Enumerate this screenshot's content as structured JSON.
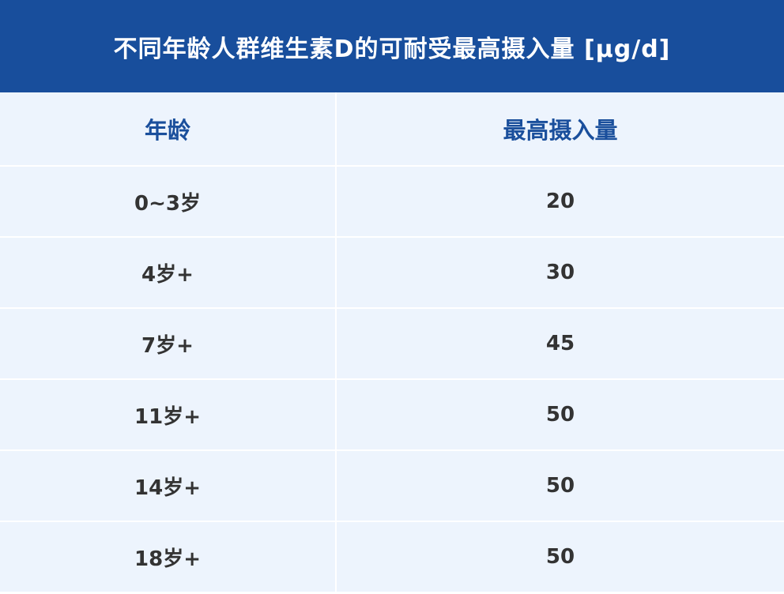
{
  "title": "不同年龄人群维生素D的可耐受最高摄入量 [μg/d]",
  "headers": [
    "年龄",
    "最高摄入量"
  ],
  "rows": [
    [
      "0~3岁",
      "20"
    ],
    [
      "4岁+",
      "30"
    ],
    [
      "7岁+",
      "45"
    ],
    [
      "11岁+",
      "50"
    ],
    [
      "14岁+",
      "50"
    ],
    [
      "18岁+",
      "50"
    ]
  ],
  "colors": {
    "header_bg": "#184e9c",
    "header_text": "#1a4f9c",
    "cell_bg": "#edf4fd"
  }
}
